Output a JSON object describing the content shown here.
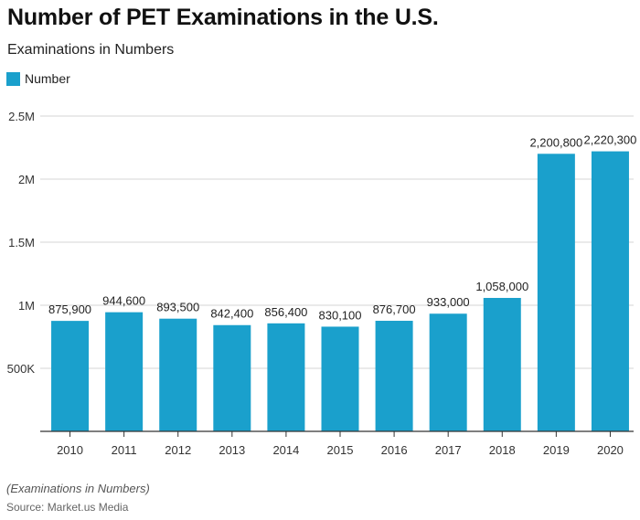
{
  "header": {
    "title": "Number of PET Examinations in the U.S.",
    "subtitle": "Examinations in Numbers"
  },
  "legend": {
    "label": "Number",
    "color": "#1aa0cc"
  },
  "footer": {
    "footnote": "(Examinations in Numbers)",
    "source": "Source: Market.us Media"
  },
  "chart_data": {
    "type": "bar",
    "categories": [
      "2010",
      "2011",
      "2012",
      "2013",
      "2014",
      "2015",
      "2016",
      "2017",
      "2018",
      "2019",
      "2020"
    ],
    "series": [
      {
        "name": "Number",
        "values": [
          875900,
          944600,
          893500,
          842400,
          856400,
          830100,
          876700,
          933000,
          1058000,
          2200800,
          2220300
        ],
        "labels": [
          "875,900",
          "944,600",
          "893,500",
          "842,400",
          "856,400",
          "830,100",
          "876,700",
          "933,000",
          "1,058,000",
          "2,200,800",
          "2,220,300"
        ]
      }
    ],
    "ylim": [
      0,
      2500000
    ],
    "yticks": [
      500000,
      1000000,
      1500000,
      2000000,
      2500000
    ],
    "ytick_labels": [
      "500K",
      "1M",
      "1.5M",
      "2M",
      "2.5M"
    ],
    "grid": true,
    "legend_position": "top-left",
    "bar_color": "#1aa0cc"
  }
}
